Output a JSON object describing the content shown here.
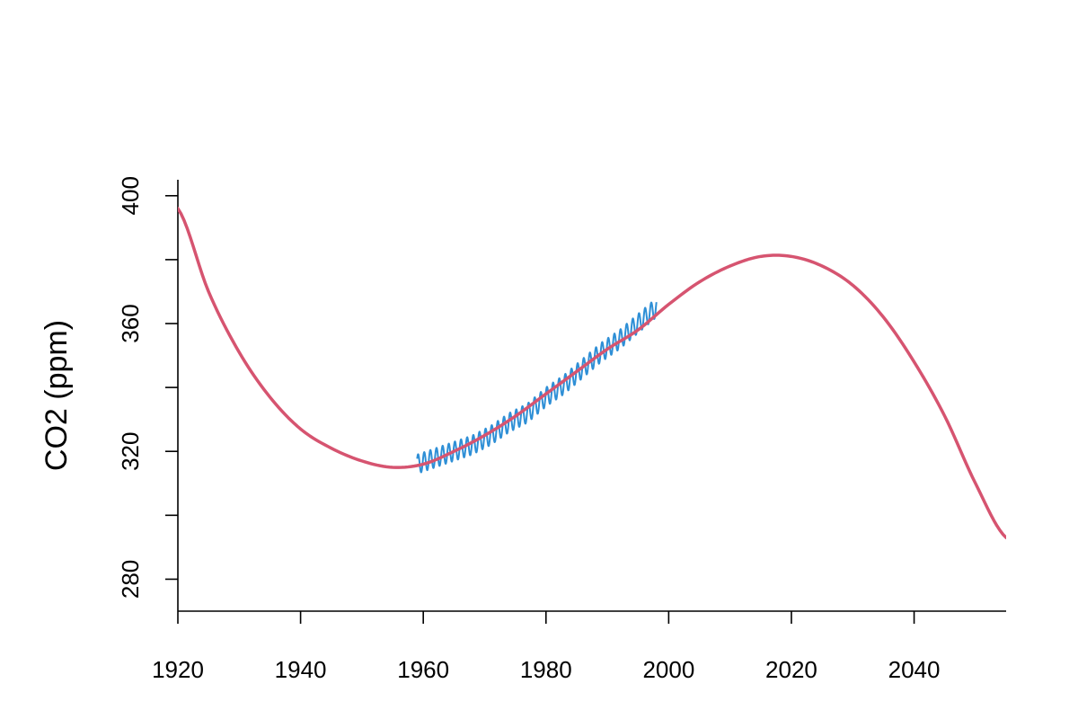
{
  "chart_data": {
    "type": "line",
    "title": "",
    "xlabel": "",
    "ylabel": "CO2 (ppm)",
    "xlim": [
      1920,
      2055
    ],
    "ylim": [
      270,
      405
    ],
    "xticks": [
      1920,
      1940,
      1960,
      1980,
      2000,
      2020,
      2040
    ],
    "yticks": [
      280,
      300,
      320,
      340,
      360,
      380,
      400
    ],
    "ytick_labels_shown": [
      280,
      320,
      360,
      400
    ],
    "grid": false,
    "legend": "none",
    "colors": {
      "observed": "#2E8FD6",
      "fit": "#D65470"
    },
    "series": [
      {
        "key": "observed",
        "style": "line-seasonal",
        "seasonal_amplitude_ppm": 3,
        "x": [
          1959,
          1962,
          1965,
          1968,
          1971,
          1974,
          1977,
          1980,
          1983,
          1986,
          1989,
          1992,
          1995,
          1998
        ],
        "values": [
          316,
          318,
          320,
          322,
          325,
          329,
          332,
          337,
          341,
          346,
          351,
          355,
          360,
          365
        ]
      },
      {
        "key": "fit",
        "style": "line",
        "x": [
          1920,
          1925,
          1930,
          1935,
          1940,
          1945,
          1950,
          1955,
          1960,
          1965,
          1970,
          1975,
          1980,
          1985,
          1990,
          1995,
          2000,
          2005,
          2010,
          2015,
          2020,
          2025,
          2030,
          2035,
          2040,
          2045,
          2050,
          2055
        ],
        "values": [
          396,
          370,
          351,
          337,
          327,
          321,
          317,
          315,
          316,
          320,
          325,
          331,
          338,
          345,
          352,
          358,
          366,
          373,
          378,
          381,
          381,
          378,
          372,
          362,
          348,
          331,
          310,
          293
        ]
      }
    ]
  }
}
